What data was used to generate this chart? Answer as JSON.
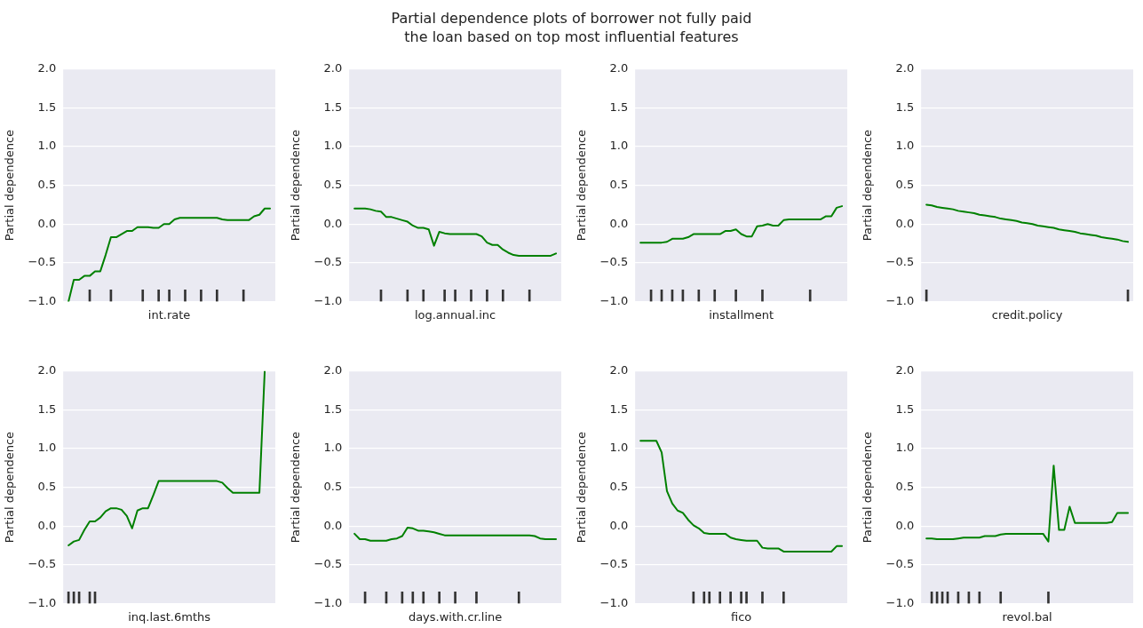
{
  "chart_data": [
    {
      "type": "other",
      "title": "Partial dependence plots of borrower not fully paid\nthe loan based on top most influential features"
    },
    {
      "type": "line",
      "xlabel": "int.rate",
      "ylabel": "Partial dependence",
      "tick_labels": "y",
      "grid": "y",
      "ylim": [
        -1,
        2
      ],
      "yticks": [
        {
          "value": -1,
          "label": "−1.0"
        },
        {
          "value": -0.5,
          "label": "−0.5"
        },
        {
          "value": 0,
          "label": "0.0"
        },
        {
          "value": 0.5,
          "label": "0.5"
        },
        {
          "value": 1,
          "label": "1.0"
        },
        {
          "value": 1.5,
          "label": "1.5"
        },
        {
          "value": 2,
          "label": "2.0"
        }
      ],
      "categories": [
        null,
        null,
        null,
        null,
        null,
        null,
        null,
        null,
        null,
        null,
        null,
        null,
        null,
        null,
        null,
        null,
        null,
        null,
        null,
        null,
        null,
        null,
        null,
        null,
        null,
        null,
        null,
        null,
        null,
        null,
        null,
        null,
        null,
        null,
        null,
        null,
        null,
        null,
        null,
        null,
        null
      ],
      "series": [
        {
          "color": "#008000",
          "values": [
            null,
            -1.0,
            -0.72,
            -0.72,
            -0.67,
            -0.67,
            -0.61,
            -0.61,
            -0.4,
            -0.17,
            -0.17,
            -0.13,
            -0.09,
            -0.09,
            -0.04,
            -0.04,
            -0.04,
            -0.05,
            -0.05,
            0.0,
            0.0,
            0.06,
            0.08,
            0.08,
            0.08,
            0.08,
            0.08,
            0.08,
            0.08,
            0.08,
            0.06,
            0.05,
            0.05,
            0.05,
            0.05,
            0.05,
            0.1,
            0.12,
            0.2,
            0.2,
            null
          ]
        },
        {
          "type": "bar",
          "color": "#333333",
          "base": [
            null,
            null,
            null,
            null,
            null,
            -1,
            null,
            null,
            null,
            -1,
            null,
            null,
            null,
            null,
            null,
            -1,
            null,
            null,
            -1,
            null,
            -1,
            null,
            null,
            -1,
            null,
            null,
            -1,
            null,
            null,
            -1,
            null,
            null,
            null,
            null,
            -1,
            null,
            null,
            null,
            null,
            null,
            null
          ],
          "values": [
            null,
            null,
            null,
            null,
            null,
            0.15,
            null,
            null,
            null,
            0.15,
            null,
            null,
            null,
            null,
            null,
            0.15,
            null,
            null,
            0.15,
            null,
            0.15,
            null,
            null,
            0.15,
            null,
            null,
            0.15,
            null,
            null,
            0.15,
            null,
            null,
            null,
            null,
            0.15,
            null,
            null,
            null,
            null,
            null,
            null
          ]
        }
      ]
    },
    {
      "type": "line",
      "xlabel": "log.annual.inc",
      "ylabel": "Partial dependence",
      "tick_labels": "y",
      "grid": "y",
      "ylim": [
        -1,
        2
      ],
      "yticks": [
        {
          "value": -1,
          "label": "−1.0"
        },
        {
          "value": -0.5,
          "label": "−0.5"
        },
        {
          "value": 0,
          "label": "0.0"
        },
        {
          "value": 0.5,
          "label": "0.5"
        },
        {
          "value": 1,
          "label": "1.0"
        },
        {
          "value": 1.5,
          "label": "1.5"
        },
        {
          "value": 2,
          "label": "2.0"
        }
      ],
      "categories": [
        null,
        null,
        null,
        null,
        null,
        null,
        null,
        null,
        null,
        null,
        null,
        null,
        null,
        null,
        null,
        null,
        null,
        null,
        null,
        null,
        null,
        null,
        null,
        null,
        null,
        null,
        null,
        null,
        null,
        null,
        null,
        null,
        null,
        null,
        null,
        null,
        null,
        null,
        null,
        null,
        null
      ],
      "series": [
        {
          "color": "#008000",
          "values": [
            null,
            0.2,
            0.2,
            0.2,
            0.19,
            0.17,
            0.16,
            0.09,
            0.09,
            0.07,
            0.05,
            0.03,
            -0.02,
            -0.05,
            -0.05,
            -0.07,
            -0.28,
            -0.1,
            -0.12,
            -0.13,
            -0.13,
            -0.13,
            -0.13,
            -0.13,
            -0.13,
            -0.16,
            -0.24,
            -0.27,
            -0.27,
            -0.33,
            -0.37,
            -0.4,
            -0.41,
            -0.41,
            -0.41,
            -0.41,
            -0.41,
            -0.41,
            -0.41,
            -0.38,
            null
          ]
        },
        {
          "type": "bar",
          "color": "#333333",
          "base": [
            null,
            null,
            null,
            null,
            null,
            null,
            -1,
            null,
            null,
            null,
            null,
            -1,
            null,
            null,
            -1,
            null,
            null,
            null,
            -1,
            null,
            -1,
            null,
            null,
            -1,
            null,
            null,
            -1,
            null,
            null,
            -1,
            null,
            null,
            null,
            null,
            -1,
            null,
            null,
            null,
            null,
            null,
            null
          ],
          "values": [
            null,
            null,
            null,
            null,
            null,
            null,
            0.15,
            null,
            null,
            null,
            null,
            0.15,
            null,
            null,
            0.15,
            null,
            null,
            null,
            0.15,
            null,
            0.15,
            null,
            null,
            0.15,
            null,
            null,
            0.15,
            null,
            null,
            0.15,
            null,
            null,
            null,
            null,
            0.15,
            null,
            null,
            null,
            null,
            null,
            null
          ]
        }
      ]
    },
    {
      "type": "line",
      "xlabel": "installment",
      "ylabel": "Partial dependence",
      "tick_labels": "y",
      "grid": "y",
      "ylim": [
        -1,
        2
      ],
      "yticks": [
        {
          "value": -1,
          "label": "−1.0"
        },
        {
          "value": -0.5,
          "label": "−0.5"
        },
        {
          "value": 0,
          "label": "0.0"
        },
        {
          "value": 0.5,
          "label": "0.5"
        },
        {
          "value": 1,
          "label": "1.0"
        },
        {
          "value": 1.5,
          "label": "1.5"
        },
        {
          "value": 2,
          "label": "2.0"
        }
      ],
      "categories": [
        null,
        null,
        null,
        null,
        null,
        null,
        null,
        null,
        null,
        null,
        null,
        null,
        null,
        null,
        null,
        null,
        null,
        null,
        null,
        null,
        null,
        null,
        null,
        null,
        null,
        null,
        null,
        null,
        null,
        null,
        null,
        null,
        null,
        null,
        null,
        null,
        null,
        null,
        null,
        null,
        null
      ],
      "series": [
        {
          "color": "#008000",
          "values": [
            null,
            -0.24,
            -0.24,
            -0.24,
            -0.24,
            -0.24,
            -0.23,
            -0.19,
            -0.19,
            -0.19,
            -0.17,
            -0.13,
            -0.13,
            -0.13,
            -0.13,
            -0.13,
            -0.13,
            -0.09,
            -0.09,
            -0.07,
            -0.13,
            -0.16,
            -0.16,
            -0.03,
            -0.02,
            0.0,
            -0.02,
            -0.02,
            0.05,
            0.06,
            0.06,
            0.06,
            0.06,
            0.06,
            0.06,
            0.06,
            0.1,
            0.1,
            0.21,
            0.23,
            null
          ]
        },
        {
          "type": "bar",
          "color": "#333333",
          "base": [
            null,
            null,
            null,
            -1,
            null,
            -1,
            null,
            -1,
            null,
            -1,
            null,
            null,
            -1,
            null,
            null,
            -1,
            null,
            null,
            null,
            -1,
            null,
            null,
            null,
            null,
            -1,
            null,
            null,
            null,
            null,
            null,
            null,
            null,
            null,
            -1,
            null,
            null,
            null,
            null,
            null,
            null,
            null
          ],
          "values": [
            null,
            null,
            null,
            0.15,
            null,
            0.15,
            null,
            0.15,
            null,
            0.15,
            null,
            null,
            0.15,
            null,
            null,
            0.15,
            null,
            null,
            null,
            0.15,
            null,
            null,
            null,
            null,
            0.15,
            null,
            null,
            null,
            null,
            null,
            null,
            null,
            null,
            0.15,
            null,
            null,
            null,
            null,
            null,
            null,
            null
          ]
        }
      ]
    },
    {
      "type": "line",
      "xlabel": "credit.policy",
      "ylabel": "Partial dependence",
      "tick_labels": "y",
      "grid": "y",
      "ylim": [
        -1,
        2
      ],
      "yticks": [
        {
          "value": -1,
          "label": "−1.0"
        },
        {
          "value": -0.5,
          "label": "−0.5"
        },
        {
          "value": 0,
          "label": "0.0"
        },
        {
          "value": 0.5,
          "label": "0.5"
        },
        {
          "value": 1,
          "label": "1.0"
        },
        {
          "value": 1.5,
          "label": "1.5"
        },
        {
          "value": 2,
          "label": "2.0"
        }
      ],
      "categories": [
        null,
        null,
        null,
        null,
        null,
        null,
        null,
        null,
        null,
        null,
        null,
        null,
        null,
        null,
        null,
        null,
        null,
        null,
        null,
        null,
        null,
        null,
        null,
        null,
        null,
        null,
        null,
        null,
        null,
        null,
        null,
        null,
        null,
        null,
        null,
        null,
        null,
        null,
        null,
        null,
        null
      ],
      "series": [
        {
          "color": "#008000",
          "values": [
            null,
            0.25,
            0.24,
            0.22,
            0.21,
            0.2,
            0.19,
            0.17,
            0.16,
            0.15,
            0.14,
            0.12,
            0.11,
            0.1,
            0.09,
            0.07,
            0.06,
            0.05,
            0.04,
            0.02,
            0.01,
            0.0,
            -0.02,
            -0.03,
            -0.04,
            -0.05,
            -0.07,
            -0.08,
            -0.09,
            -0.1,
            -0.12,
            -0.13,
            -0.14,
            -0.15,
            -0.17,
            -0.18,
            -0.19,
            -0.2,
            -0.22,
            -0.23,
            null
          ]
        },
        {
          "type": "bar",
          "color": "#333333",
          "base": [
            null,
            -1,
            null,
            null,
            null,
            null,
            null,
            null,
            null,
            null,
            null,
            null,
            null,
            null,
            null,
            null,
            null,
            null,
            null,
            null,
            null,
            null,
            null,
            null,
            null,
            null,
            null,
            null,
            null,
            null,
            null,
            null,
            null,
            null,
            null,
            null,
            null,
            null,
            null,
            -1,
            null
          ],
          "values": [
            null,
            0.15,
            null,
            null,
            null,
            null,
            null,
            null,
            null,
            null,
            null,
            null,
            null,
            null,
            null,
            null,
            null,
            null,
            null,
            null,
            null,
            null,
            null,
            null,
            null,
            null,
            null,
            null,
            null,
            null,
            null,
            null,
            null,
            null,
            null,
            null,
            null,
            null,
            null,
            0.15,
            null
          ]
        }
      ]
    },
    {
      "type": "line",
      "xlabel": "inq.last.6mths",
      "ylabel": "Partial dependence",
      "tick_labels": "y",
      "grid": "y",
      "ylim": [
        -1,
        2
      ],
      "yticks": [
        {
          "value": -1,
          "label": "−1.0"
        },
        {
          "value": -0.5,
          "label": "−0.5"
        },
        {
          "value": 0,
          "label": "0.0"
        },
        {
          "value": 0.5,
          "label": "0.5"
        },
        {
          "value": 1,
          "label": "1.0"
        },
        {
          "value": 1.5,
          "label": "1.5"
        },
        {
          "value": 2,
          "label": "2.0"
        }
      ],
      "categories": [
        null,
        null,
        null,
        null,
        null,
        null,
        null,
        null,
        null,
        null,
        null,
        null,
        null,
        null,
        null,
        null,
        null,
        null,
        null,
        null,
        null,
        null,
        null,
        null,
        null,
        null,
        null,
        null,
        null,
        null,
        null,
        null,
        null,
        null,
        null,
        null,
        null,
        null,
        null,
        null,
        null
      ],
      "series": [
        {
          "color": "#008000",
          "values": [
            null,
            -0.25,
            -0.2,
            -0.18,
            -0.05,
            0.06,
            0.06,
            0.11,
            0.19,
            0.23,
            0.23,
            0.21,
            0.13,
            -0.03,
            0.2,
            0.23,
            0.23,
            0.4,
            0.58,
            0.58,
            0.58,
            0.58,
            0.58,
            0.58,
            0.58,
            0.58,
            0.58,
            0.58,
            0.58,
            0.58,
            0.56,
            0.49,
            0.43,
            0.43,
            0.43,
            0.43,
            0.43,
            0.43,
            2.0,
            null,
            null
          ]
        },
        {
          "type": "bar",
          "color": "#333333",
          "base": [
            null,
            -1,
            -1,
            -1,
            null,
            -1,
            -1,
            null,
            null,
            null,
            null,
            null,
            null,
            null,
            null,
            null,
            null,
            null,
            null,
            null,
            null,
            null,
            null,
            null,
            null,
            null,
            null,
            null,
            null,
            null,
            null,
            null,
            null,
            null,
            null,
            null,
            null,
            null,
            null,
            null,
            null
          ],
          "values": [
            null,
            0.15,
            0.15,
            0.15,
            null,
            0.15,
            0.15,
            null,
            null,
            null,
            null,
            null,
            null,
            null,
            null,
            null,
            null,
            null,
            null,
            null,
            null,
            null,
            null,
            null,
            null,
            null,
            null,
            null,
            null,
            null,
            null,
            null,
            null,
            null,
            null,
            null,
            null,
            null,
            null,
            null,
            null
          ]
        }
      ]
    },
    {
      "type": "line",
      "xlabel": "days.with.cr.line",
      "ylabel": "Partial dependence",
      "tick_labels": "y",
      "grid": "y",
      "ylim": [
        -1,
        2
      ],
      "yticks": [
        {
          "value": -1,
          "label": "−1.0"
        },
        {
          "value": -0.5,
          "label": "−0.5"
        },
        {
          "value": 0,
          "label": "0.0"
        },
        {
          "value": 0.5,
          "label": "0.5"
        },
        {
          "value": 1,
          "label": "1.0"
        },
        {
          "value": 1.5,
          "label": "1.5"
        },
        {
          "value": 2,
          "label": "2.0"
        }
      ],
      "categories": [
        null,
        null,
        null,
        null,
        null,
        null,
        null,
        null,
        null,
        null,
        null,
        null,
        null,
        null,
        null,
        null,
        null,
        null,
        null,
        null,
        null,
        null,
        null,
        null,
        null,
        null,
        null,
        null,
        null,
        null,
        null,
        null,
        null,
        null,
        null,
        null,
        null,
        null,
        null,
        null,
        null
      ],
      "series": [
        {
          "color": "#008000",
          "values": [
            null,
            -0.1,
            -0.17,
            -0.17,
            -0.19,
            -0.19,
            -0.19,
            -0.19,
            -0.17,
            -0.16,
            -0.13,
            -0.02,
            -0.03,
            -0.06,
            -0.06,
            -0.07,
            -0.08,
            -0.1,
            -0.12,
            -0.12,
            -0.12,
            -0.12,
            -0.12,
            -0.12,
            -0.12,
            -0.12,
            -0.12,
            -0.12,
            -0.12,
            -0.12,
            -0.12,
            -0.12,
            -0.12,
            -0.12,
            -0.12,
            -0.13,
            -0.16,
            -0.17,
            -0.17,
            -0.17,
            null
          ]
        },
        {
          "type": "bar",
          "color": "#333333",
          "base": [
            null,
            null,
            null,
            -1,
            null,
            null,
            null,
            -1,
            null,
            null,
            -1,
            null,
            -1,
            null,
            -1,
            null,
            null,
            -1,
            null,
            null,
            -1,
            null,
            null,
            null,
            -1,
            null,
            null,
            null,
            null,
            null,
            null,
            null,
            -1,
            null,
            null,
            null,
            null,
            null,
            null,
            null,
            null
          ],
          "values": [
            null,
            null,
            null,
            0.15,
            null,
            null,
            null,
            0.15,
            null,
            null,
            0.15,
            null,
            0.15,
            null,
            0.15,
            null,
            null,
            0.15,
            null,
            null,
            0.15,
            null,
            null,
            null,
            0.15,
            null,
            null,
            null,
            null,
            null,
            null,
            null,
            0.15,
            null,
            null,
            null,
            null,
            null,
            null,
            null,
            null
          ]
        }
      ]
    },
    {
      "type": "line",
      "xlabel": "fico",
      "ylabel": "Partial dependence",
      "tick_labels": "y",
      "grid": "y",
      "ylim": [
        -1,
        2
      ],
      "yticks": [
        {
          "value": -1,
          "label": "−1.0"
        },
        {
          "value": -0.5,
          "label": "−0.5"
        },
        {
          "value": 0,
          "label": "0.0"
        },
        {
          "value": 0.5,
          "label": "0.5"
        },
        {
          "value": 1,
          "label": "1.0"
        },
        {
          "value": 1.5,
          "label": "1.5"
        },
        {
          "value": 2,
          "label": "2.0"
        }
      ],
      "categories": [
        null,
        null,
        null,
        null,
        null,
        null,
        null,
        null,
        null,
        null,
        null,
        null,
        null,
        null,
        null,
        null,
        null,
        null,
        null,
        null,
        null,
        null,
        null,
        null,
        null,
        null,
        null,
        null,
        null,
        null,
        null,
        null,
        null,
        null,
        null,
        null,
        null,
        null,
        null,
        null,
        null
      ],
      "series": [
        {
          "color": "#008000",
          "values": [
            null,
            1.1,
            1.1,
            1.1,
            1.1,
            0.95,
            0.45,
            0.29,
            0.2,
            0.17,
            0.08,
            0.01,
            -0.03,
            -0.09,
            -0.1,
            -0.1,
            -0.1,
            -0.1,
            -0.15,
            -0.17,
            -0.18,
            -0.19,
            -0.19,
            -0.19,
            -0.28,
            -0.29,
            -0.29,
            -0.29,
            -0.33,
            -0.33,
            -0.33,
            -0.33,
            -0.33,
            -0.33,
            -0.33,
            -0.33,
            -0.33,
            -0.33,
            -0.26,
            -0.26,
            null
          ]
        },
        {
          "type": "bar",
          "color": "#333333",
          "base": [
            null,
            null,
            null,
            null,
            null,
            null,
            null,
            null,
            null,
            null,
            null,
            -1,
            null,
            -1,
            -1,
            null,
            -1,
            null,
            -1,
            null,
            -1,
            -1,
            null,
            null,
            -1,
            null,
            null,
            null,
            -1,
            null,
            null,
            null,
            null,
            null,
            null,
            null,
            null,
            null,
            null,
            null,
            null
          ],
          "values": [
            null,
            null,
            null,
            null,
            null,
            null,
            null,
            null,
            null,
            null,
            null,
            0.15,
            null,
            0.15,
            0.15,
            null,
            0.15,
            null,
            0.15,
            null,
            0.15,
            0.15,
            null,
            null,
            0.15,
            null,
            null,
            null,
            0.15,
            null,
            null,
            null,
            null,
            null,
            null,
            null,
            null,
            null,
            null,
            null,
            null
          ]
        }
      ]
    },
    {
      "type": "line",
      "xlabel": "revol.bal",
      "ylabel": "Partial dependence",
      "tick_labels": "y",
      "grid": "y",
      "ylim": [
        -1,
        2
      ],
      "yticks": [
        {
          "value": -1,
          "label": "−1.0"
        },
        {
          "value": -0.5,
          "label": "−0.5"
        },
        {
          "value": 0,
          "label": "0.0"
        },
        {
          "value": 0.5,
          "label": "0.5"
        },
        {
          "value": 1,
          "label": "1.0"
        },
        {
          "value": 1.5,
          "label": "1.5"
        },
        {
          "value": 2,
          "label": "2.0"
        }
      ],
      "categories": [
        null,
        null,
        null,
        null,
        null,
        null,
        null,
        null,
        null,
        null,
        null,
        null,
        null,
        null,
        null,
        null,
        null,
        null,
        null,
        null,
        null,
        null,
        null,
        null,
        null,
        null,
        null,
        null,
        null,
        null,
        null,
        null,
        null,
        null,
        null,
        null,
        null,
        null,
        null,
        null,
        null
      ],
      "series": [
        {
          "color": "#008000",
          "values": [
            null,
            -0.16,
            -0.16,
            -0.17,
            -0.17,
            -0.17,
            -0.17,
            -0.16,
            -0.15,
            -0.15,
            -0.15,
            -0.15,
            -0.13,
            -0.13,
            -0.13,
            -0.11,
            -0.1,
            -0.1,
            -0.1,
            -0.1,
            -0.1,
            -0.1,
            -0.1,
            -0.1,
            -0.2,
            0.78,
            -0.05,
            -0.05,
            0.25,
            0.04,
            0.04,
            0.04,
            0.04,
            0.04,
            0.04,
            0.04,
            0.05,
            0.17,
            0.17,
            0.17,
            null
          ]
        },
        {
          "type": "bar",
          "color": "#333333",
          "base": [
            null,
            null,
            -1,
            -1,
            -1,
            -1,
            null,
            -1,
            null,
            -1,
            null,
            -1,
            null,
            null,
            null,
            -1,
            null,
            null,
            null,
            null,
            null,
            null,
            null,
            null,
            -1,
            null,
            null,
            null,
            null,
            null,
            null,
            null,
            null,
            null,
            null,
            null,
            null,
            null,
            null,
            null,
            null
          ],
          "values": [
            null,
            null,
            0.15,
            0.15,
            0.15,
            0.15,
            null,
            0.15,
            null,
            0.15,
            null,
            0.15,
            null,
            null,
            null,
            0.15,
            null,
            null,
            null,
            null,
            null,
            null,
            null,
            null,
            0.15,
            null,
            null,
            null,
            null,
            null,
            null,
            null,
            null,
            null,
            null,
            null,
            null,
            null,
            null,
            null,
            null
          ]
        }
      ]
    }
  ]
}
